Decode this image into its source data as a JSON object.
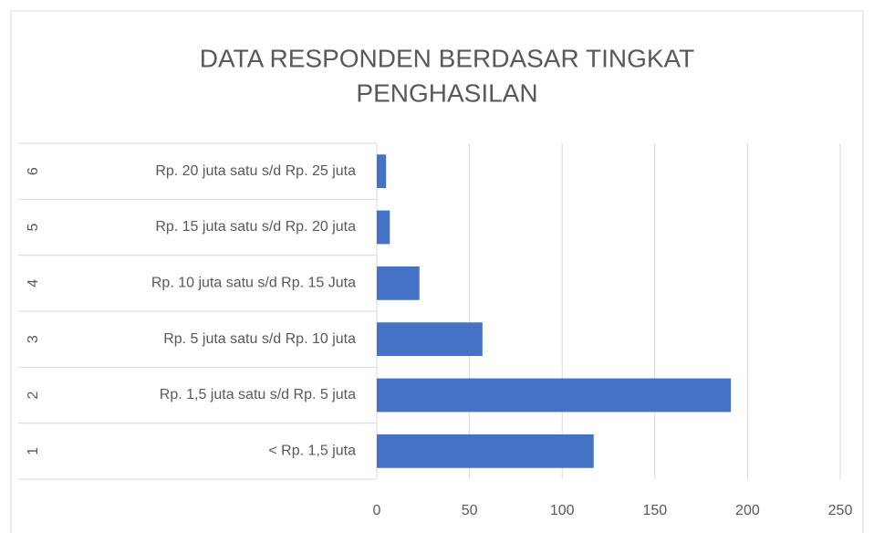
{
  "chart_data": {
    "type": "bar",
    "orientation": "horizontal",
    "title": [
      "DATA RESPONDEN BERDASAR TINGKAT",
      "PENGHASILAN"
    ],
    "category_groups": [
      "1",
      "2",
      "3",
      "4",
      "5",
      "6"
    ],
    "categories": [
      "<  Rp. 1,5 juta",
      "Rp. 1,5 juta satu s/d Rp. 5 juta",
      "Rp. 5 juta satu s/d Rp. 10 juta",
      "Rp. 10 juta satu s/d Rp. 15 Juta",
      "Rp. 15 juta satu s/d Rp. 20 juta",
      "Rp. 20 juta satu s/d Rp. 25 juta"
    ],
    "values": [
      117,
      191,
      57,
      23,
      7,
      5
    ],
    "color": "#4472c4",
    "xlim": [
      0,
      250
    ],
    "xticks": [
      0,
      50,
      100,
      150,
      200,
      250
    ],
    "grid": true
  }
}
